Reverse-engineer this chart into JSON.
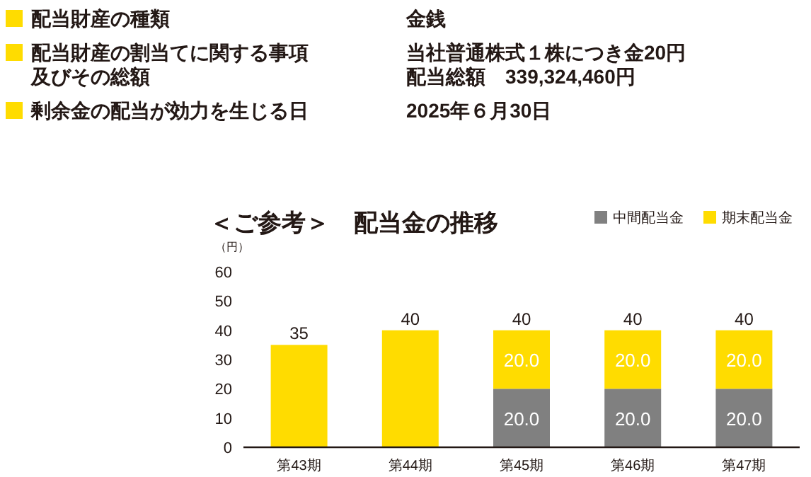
{
  "chart_data": {
    "type": "bar",
    "stacked": true,
    "title": "＜ご参考＞　配当金の推移",
    "ylabel": "（円）",
    "annotations": [
      "配当財産の種類",
      "金銭",
      "配当財産の割当てに関する事項及びその総額",
      "当社普通株式１株につき金20円",
      "配当総額　339,324,460円",
      "剰余金の配当が効力を生じる日",
      "2025年６月30日"
    ],
    "categories": [
      "第43期",
      "第44期",
      "第45期",
      "第46期",
      "第47期"
    ],
    "series": [
      {
        "name": "中間配当金",
        "color": "#808080",
        "values": [
          null,
          null,
          20,
          20,
          20
        ],
        "value_labels": [
          null,
          null,
          "20.0",
          "20.0",
          "20.0"
        ]
      },
      {
        "name": "期末配当金",
        "color": "#ffdc00",
        "values": [
          35,
          40,
          20,
          20,
          20
        ],
        "value_labels": [
          null,
          null,
          "20.0",
          "20.0",
          "20.0"
        ]
      }
    ],
    "totals": [
      "35",
      "40",
      "40",
      "40",
      "40"
    ],
    "ylim": [
      0,
      60
    ],
    "yticks": [
      0,
      10,
      20,
      30,
      40,
      50,
      60
    ],
    "grid": false,
    "legend": "top right"
  }
}
